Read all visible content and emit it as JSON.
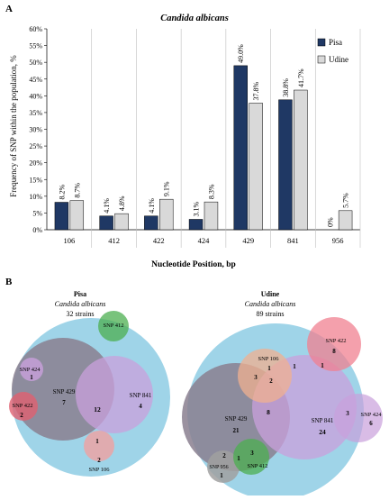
{
  "panel_a_letter": "A",
  "panel_b_letter": "B",
  "chart_data": {
    "type": "bar",
    "title": "Candida albicans",
    "xlabel": "Nucleotide Position, bp",
    "ylabel": "Frequency of SNP within the population, %",
    "ylim": [
      0,
      60
    ],
    "yticks": [
      "0%",
      "5%",
      "10%",
      "15%",
      "20%",
      "25%",
      "30%",
      "35%",
      "40%",
      "45%",
      "50%",
      "55%",
      "60%"
    ],
    "categories": [
      "106",
      "412",
      "422",
      "424",
      "429",
      "841",
      "956"
    ],
    "series": [
      {
        "name": "Pisa",
        "values": [
          8.2,
          4.1,
          4.1,
          3.1,
          49.0,
          38.8,
          0
        ],
        "labels": [
          "8.2%",
          "4.1%",
          "4.1%",
          "3.1%",
          "49.0%",
          "38.8%",
          "0%"
        ]
      },
      {
        "name": "Udine",
        "values": [
          8.7,
          4.8,
          9.1,
          8.3,
          37.8,
          41.7,
          5.7
        ],
        "labels": [
          "8.7%",
          "4.8%",
          "9.1%",
          "8.3%",
          "37.8%",
          "41.7%",
          "5.7%"
        ]
      }
    ],
    "colors": {
      "Pisa": "#1f3864",
      "Udine": "#d9d9d9"
    },
    "grid": "vertical-separators",
    "legend": "right"
  },
  "venn": [
    {
      "title": "Pisa",
      "subtitle": "Candida albicans",
      "strains": "32 strains",
      "sets": [
        {
          "name": "SNP 429",
          "value": "7",
          "color": "#8a7f8f"
        },
        {
          "name": "SNP 841",
          "value": "4",
          "color": "#c9a0dc"
        },
        {
          "name": "SNP 424",
          "value": "1",
          "color": "#c9a0dc"
        },
        {
          "name": "SNP 422",
          "value": "2",
          "color": "#e06070"
        },
        {
          "name": "SNP 412",
          "value": "",
          "color": "#4caf50"
        },
        {
          "name": "SNP 106",
          "value": "2",
          "color": "#f0a0a0"
        }
      ],
      "overlaps": [
        {
          "value": "12"
        },
        {
          "value": "1"
        }
      ]
    },
    {
      "title": "Udine",
      "subtitle": "Candida albicans",
      "strains": "89 strains",
      "sets": [
        {
          "name": "SNP 429",
          "value": "21",
          "color": "#8a7f8f"
        },
        {
          "name": "SNP 841",
          "value": "24",
          "color": "#c9a0dc"
        },
        {
          "name": "SNP 106",
          "value": "1",
          "color": "#f0b090"
        },
        {
          "name": "SNP 422",
          "value": "8",
          "color": "#f08090"
        },
        {
          "name": "SNP 424",
          "value": "6",
          "color": "#c9a0dc"
        },
        {
          "name": "SNP 956",
          "value": "1",
          "color": "#a0a0a0"
        },
        {
          "name": "SNP 412",
          "value": "",
          "color": "#4caf50"
        }
      ],
      "overlaps": [
        {
          "value": "1"
        },
        {
          "value": "3"
        },
        {
          "value": "2"
        },
        {
          "value": "8"
        },
        {
          "value": "1"
        },
        {
          "value": "3"
        },
        {
          "value": "2"
        },
        {
          "value": "1"
        },
        {
          "value": "3"
        }
      ]
    }
  ]
}
